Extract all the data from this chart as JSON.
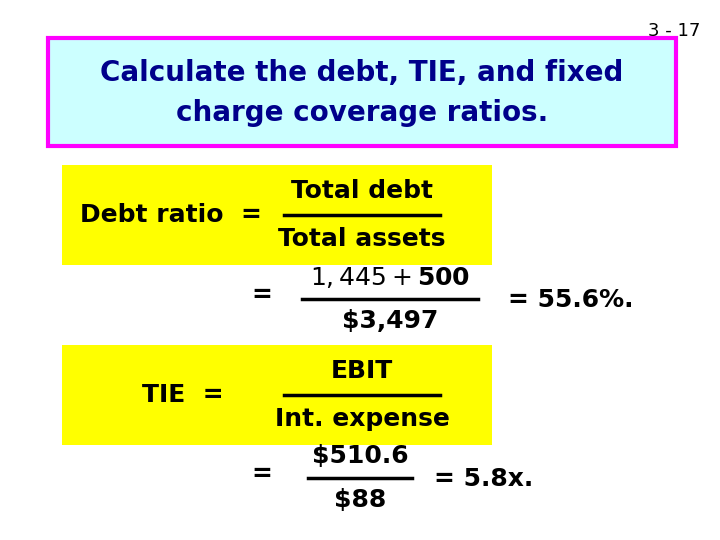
{
  "slide_number": "3 - 17",
  "background_color": "#ffffff",
  "header_text_line1": "Calculate the debt, TIE, and fixed",
  "header_text_line2": "charge coverage ratios.",
  "header_bg_color": "#ccffff",
  "header_border_color": "#ff00ff",
  "header_text_color": "#00008B",
  "slide_num_color": "#000000",
  "yellow_bg": "#ffff00",
  "black_text": "#000000",
  "debt_ratio_label": "Debt ratio",
  "debt_num": "Total debt",
  "debt_den": "Total assets",
  "debt_num2": "$1,445 + $500",
  "debt_den2": "$3,497",
  "debt_result": "= 55.6%.",
  "tie_label": "TIE",
  "tie_num": "EBIT",
  "tie_den": "Int. expense",
  "tie_num2": "$510.6",
  "tie_den2": "$88",
  "tie_result": "= 5.8x."
}
